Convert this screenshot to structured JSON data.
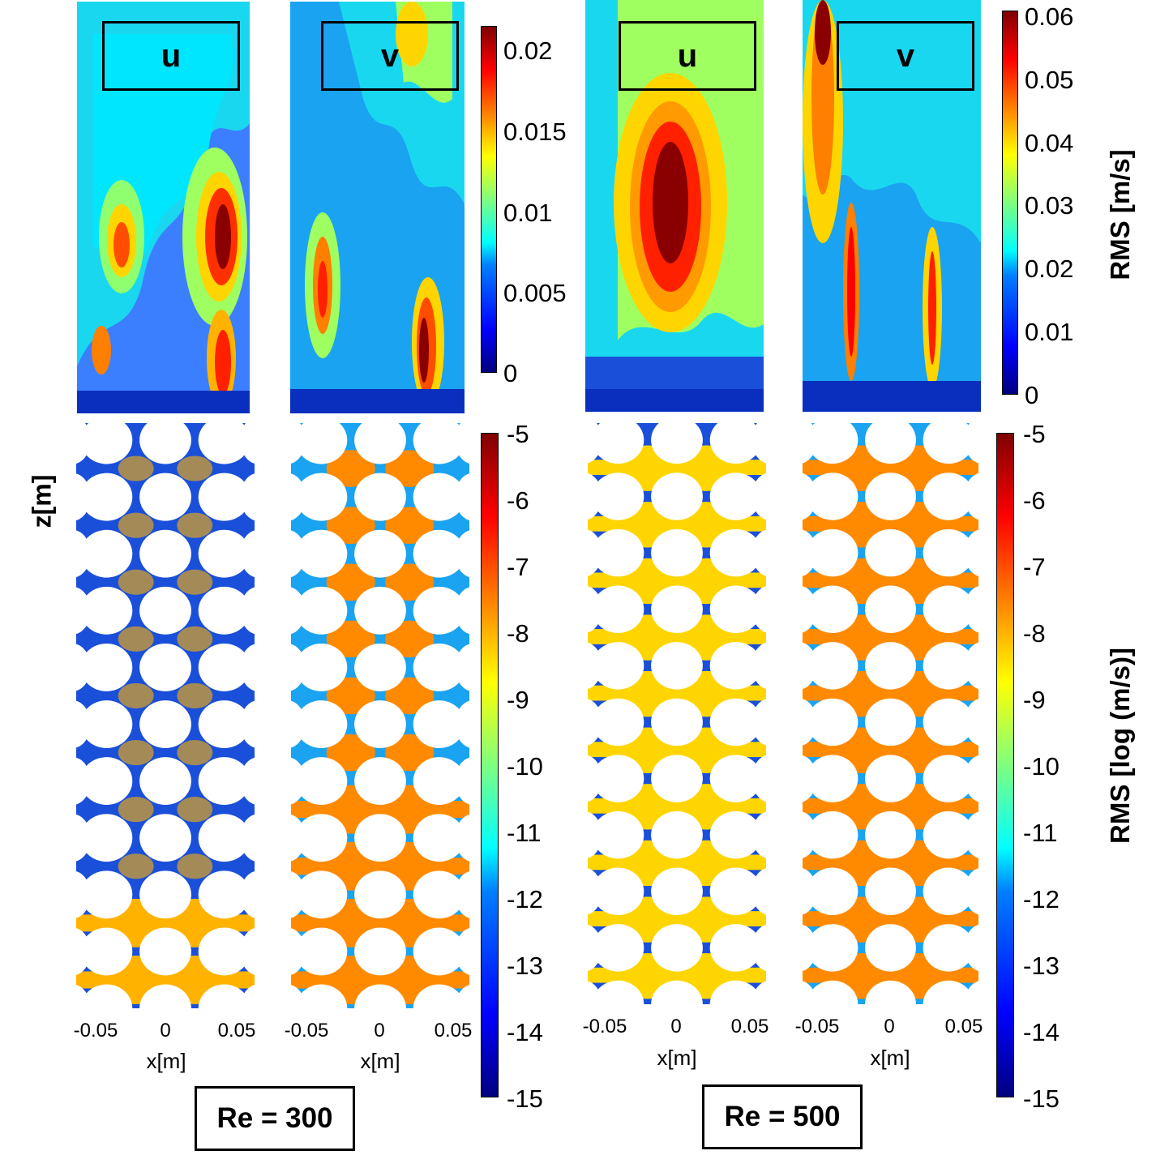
{
  "chart_data": [
    {
      "type": "heatmap",
      "panel": "top-1",
      "variable": "u",
      "reynolds": "Re = 300",
      "quantity": "RMS [m/s]",
      "colorbar_range": [
        0,
        0.022
      ]
    },
    {
      "type": "heatmap",
      "panel": "top-2",
      "variable": "v",
      "reynolds": "Re = 300",
      "quantity": "RMS [m/s]",
      "colorbar_range": [
        0,
        0.022
      ]
    },
    {
      "type": "heatmap",
      "panel": "top-3",
      "variable": "u",
      "reynolds": "Re = 500",
      "quantity": "RMS [m/s]",
      "colorbar_range": [
        0,
        0.062
      ]
    },
    {
      "type": "heatmap",
      "panel": "top-4",
      "variable": "v",
      "reynolds": "Re = 500",
      "quantity": "RMS [m/s]",
      "colorbar_range": [
        0,
        0.062
      ]
    },
    {
      "type": "heatmap",
      "panel": "bottom-1",
      "reynolds": "Re = 300",
      "quantity": "RMS [log (m/s)]",
      "colorbar_range": [
        -15,
        -5
      ]
    },
    {
      "type": "heatmap",
      "panel": "bottom-2",
      "reynolds": "Re = 300",
      "quantity": "RMS [log (m/s)]",
      "colorbar_range": [
        -15,
        -5
      ]
    },
    {
      "type": "heatmap",
      "panel": "bottom-3",
      "reynolds": "Re = 500",
      "quantity": "RMS [log (m/s)]",
      "colorbar_range": [
        -15,
        -5
      ]
    },
    {
      "type": "heatmap",
      "panel": "bottom-4",
      "reynolds": "Re = 500",
      "quantity": "RMS [log (m/s)]",
      "colorbar_range": [
        -15,
        -5
      ]
    }
  ],
  "labels": {
    "u": "u",
    "v": "v",
    "re300": "Re = 300",
    "re500": "Re = 500",
    "zlabel": "z[m]",
    "xlabel": "x[m]",
    "xticks": [
      "-0.05",
      "0",
      "0.05"
    ]
  },
  "colorbar_small": {
    "title": "",
    "ticks": [
      "0.02",
      "0.015",
      "0.01",
      "0.005",
      "0"
    ]
  },
  "colorbar_top": {
    "title": "RMS [m/s]",
    "ticks": [
      "0.06",
      "0.05",
      "0.04",
      "0.03",
      "0.02",
      "0.01",
      "0"
    ]
  },
  "colorbar_log": {
    "title": "RMS [log (m/s)]",
    "ticks": [
      "-5",
      "-6",
      "-7",
      "-8",
      "-9",
      "-10",
      "-11",
      "-12",
      "-13",
      "-14",
      "-15"
    ]
  },
  "colors": {
    "deep_blue": "#1a4fd9",
    "light_blue": "#1aa3f0",
    "orange": "#ff8a00",
    "amber": "#ffb300",
    "yellow": "#ffd500",
    "cyan": "#1ad7f0",
    "dark_red": "#8a0000"
  }
}
